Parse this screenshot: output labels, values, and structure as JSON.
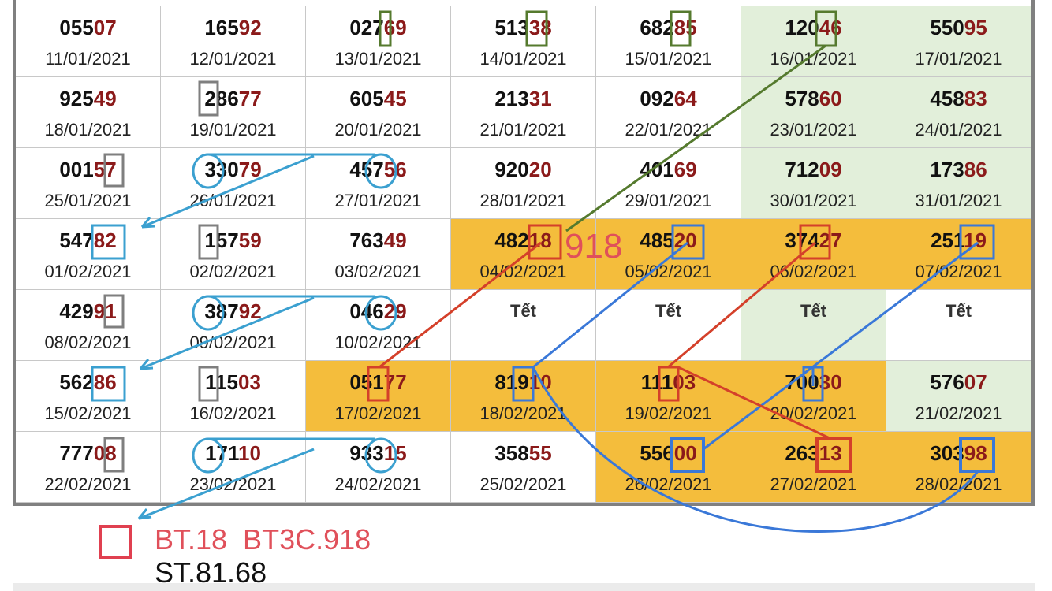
{
  "table": {
    "rows": [
      [
        {
          "lead": "055",
          "tail": "07",
          "date": "11/01/2021"
        },
        {
          "lead": "165",
          "tail": "92",
          "date": "12/01/2021"
        },
        {
          "lead": "027",
          "tail": "69",
          "date": "13/01/2021"
        },
        {
          "lead": "513",
          "tail": "38",
          "date": "14/01/2021"
        },
        {
          "lead": "682",
          "tail": "85",
          "date": "15/01/2021"
        },
        {
          "lead": "120",
          "tail": "46",
          "date": "16/01/2021"
        },
        {
          "lead": "550",
          "tail": "95",
          "date": "17/01/2021"
        }
      ],
      [
        {
          "lead": "925",
          "tail": "49",
          "date": "18/01/2021"
        },
        {
          "lead": "286",
          "tail": "77",
          "date": "19/01/2021"
        },
        {
          "lead": "605",
          "tail": "45",
          "date": "20/01/2021"
        },
        {
          "lead": "213",
          "tail": "31",
          "date": "21/01/2021"
        },
        {
          "lead": "092",
          "tail": "64",
          "date": "22/01/2021"
        },
        {
          "lead": "578",
          "tail": "60",
          "date": "23/01/2021"
        },
        {
          "lead": "458",
          "tail": "83",
          "date": "24/01/2021"
        }
      ],
      [
        {
          "lead": "001",
          "tail": "57",
          "date": "25/01/2021"
        },
        {
          "lead": "330",
          "tail": "79",
          "date": "26/01/2021"
        },
        {
          "lead": "457",
          "tail": "56",
          "date": "27/01/2021"
        },
        {
          "lead": "920",
          "tail": "20",
          "date": "28/01/2021"
        },
        {
          "lead": "401",
          "tail": "69",
          "date": "29/01/2021"
        },
        {
          "lead": "712",
          "tail": "09",
          "date": "30/01/2021"
        },
        {
          "lead": "173",
          "tail": "86",
          "date": "31/01/2021"
        }
      ],
      [
        {
          "lead": "547",
          "tail": "82",
          "date": "01/02/2021"
        },
        {
          "lead": "157",
          "tail": "59",
          "date": "02/02/2021"
        },
        {
          "lead": "763",
          "tail": "49",
          "date": "03/02/2021"
        },
        {
          "lead": "482",
          "tail": "18",
          "date": "04/02/2021"
        },
        {
          "lead": "485",
          "tail": "20",
          "date": "05/02/2021"
        },
        {
          "lead": "374",
          "tail": "27",
          "date": "06/02/2021"
        },
        {
          "lead": "251",
          "tail": "19",
          "date": "07/02/2021"
        }
      ],
      [
        {
          "lead": "429",
          "tail": "91",
          "date": "08/02/2021"
        },
        {
          "lead": "387",
          "tail": "92",
          "date": "09/02/2021"
        },
        {
          "lead": "046",
          "tail": "29",
          "date": "10/02/2021"
        },
        {
          "text": "Tết"
        },
        {
          "text": "Tết"
        },
        {
          "text": "Tết"
        },
        {
          "text": "Tết"
        }
      ],
      [
        {
          "lead": "562",
          "tail": "86",
          "date": "15/02/2021"
        },
        {
          "lead": "115",
          "tail": "03",
          "date": "16/02/2021"
        },
        {
          "lead": "051",
          "tail": "77",
          "date": "17/02/2021"
        },
        {
          "lead": "819",
          "tail": "10",
          "date": "18/02/2021"
        },
        {
          "lead": "111",
          "tail": "03",
          "date": "19/02/2021"
        },
        {
          "lead": "700",
          "tail": "30",
          "date": "20/02/2021"
        },
        {
          "lead": "576",
          "tail": "07",
          "date": "21/02/2021"
        }
      ],
      [
        {
          "lead": "777",
          "tail": "08",
          "date": "22/02/2021"
        },
        {
          "lead": "171",
          "tail": "10",
          "date": "23/02/2021"
        },
        {
          "lead": "933",
          "tail": "15",
          "date": "24/02/2021"
        },
        {
          "lead": "358",
          "tail": "55",
          "date": "25/02/2021"
        },
        {
          "lead": "556",
          "tail": "00",
          "date": "26/02/2021"
        },
        {
          "lead": "263",
          "tail": "13",
          "date": "27/02/2021"
        },
        {
          "lead": "303",
          "tail": "98",
          "date": "28/02/2021"
        }
      ]
    ]
  },
  "annotation": "918",
  "legend": {
    "line1": "BT.18  BT3C.918",
    "line2": "ST.81.68"
  }
}
